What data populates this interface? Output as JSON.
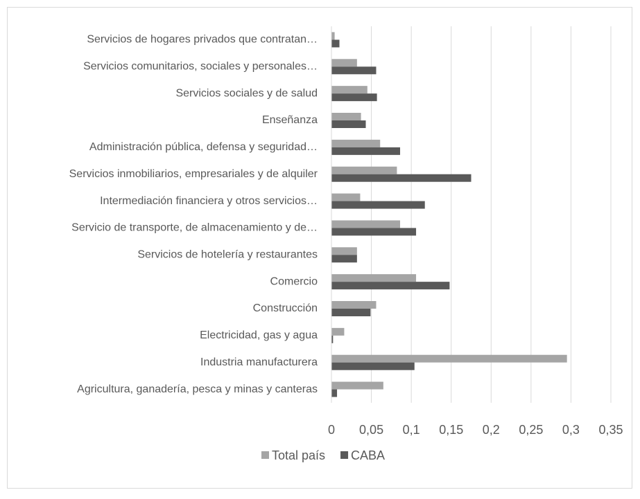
{
  "chart_data": {
    "type": "barh",
    "categories": [
      "Servicios de hogares privados que contratan…",
      "Servicios comunitarios, sociales y personales…",
      "Servicios sociales y de salud",
      "Enseñanza",
      "Administración pública, defensa y seguridad…",
      "Servicios inmobiliarios, empresariales y de alquiler",
      "Intermediación financiera y otros servicios…",
      "Servicio de transporte, de almacenamiento y de…",
      "Servicios de hotelería y restaurantes",
      "Comercio",
      "Construcción",
      "Electricidad, gas y agua",
      "Industria manufacturera",
      "Agricultura, ganadería, pesca y minas y canteras"
    ],
    "series": [
      {
        "name": "Total país",
        "color": "#a5a5a5",
        "values": [
          0.004,
          0.032,
          0.045,
          0.037,
          0.061,
          0.082,
          0.036,
          0.086,
          0.032,
          0.106,
          0.056,
          0.016,
          0.295,
          0.065
        ]
      },
      {
        "name": "CABA",
        "color": "#595959",
        "values": [
          0.01,
          0.056,
          0.057,
          0.043,
          0.086,
          0.175,
          0.117,
          0.106,
          0.032,
          0.148,
          0.049,
          0.002,
          0.104,
          0.007
        ]
      }
    ],
    "xlim": [
      0,
      0.35
    ],
    "xticks": [
      0,
      {
        "value": 0.05,
        "label": "0,05"
      },
      {
        "value": 0.1,
        "label": "0,1"
      },
      {
        "value": 0.15,
        "label": "0,15"
      },
      {
        "value": 0.2,
        "label": "0,2"
      },
      {
        "value": 0.25,
        "label": "0,25"
      },
      {
        "value": 0.3,
        "label": "0,3"
      },
      {
        "value": 0.35,
        "label": "0,35"
      }
    ],
    "grid": true,
    "legend": "bottom"
  }
}
